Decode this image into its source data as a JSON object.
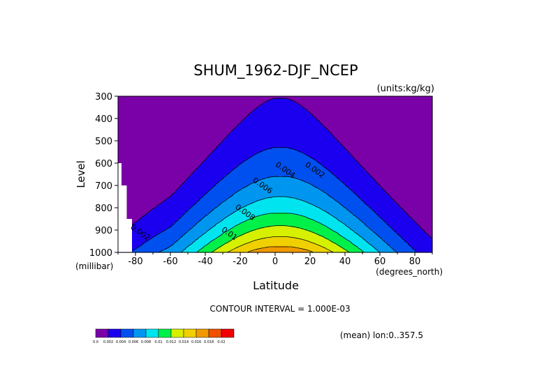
{
  "chart_data": {
    "type": "heatmap",
    "title": "SHUM_1962-DJF_NCEP",
    "units_label": "(units:kg/kg)",
    "xlabel": "Latitude",
    "ylabel": "Level",
    "x_unit_label": "(degrees_north)",
    "y_unit_label": "(millibar)",
    "xlim": [
      -90,
      90
    ],
    "ylim": [
      1000,
      300
    ],
    "x_ticks": [
      {
        "value": -80,
        "label": "-80"
      },
      {
        "value": -60,
        "label": "-60"
      },
      {
        "value": -40,
        "label": "-40"
      },
      {
        "value": -20,
        "label": "-20"
      },
      {
        "value": 0,
        "label": "0"
      },
      {
        "value": 20,
        "label": "20"
      },
      {
        "value": 40,
        "label": "40"
      },
      {
        "value": 60,
        "label": "60"
      },
      {
        "value": 80,
        "label": "80"
      }
    ],
    "y_ticks": [
      {
        "value": 300,
        "label": "300"
      },
      {
        "value": 400,
        "label": "400"
      },
      {
        "value": 500,
        "label": "500"
      },
      {
        "value": 600,
        "label": "600"
      },
      {
        "value": 700,
        "label": "700"
      },
      {
        "value": 800,
        "label": "800"
      },
      {
        "value": 900,
        "label": "900"
      },
      {
        "value": 1000,
        "label": "1000"
      }
    ],
    "contour_interval_text": "CONTOUR INTERVAL = 1.000E-03",
    "mean_text": "(mean) lon:0..357.5",
    "colorbar": {
      "colors": [
        "#7a00a8",
        "#1b00f0",
        "#0050f0",
        "#0096f0",
        "#00e4f0",
        "#00f04a",
        "#d6f000",
        "#f0d000",
        "#f09a00",
        "#f05000",
        "#f00000"
      ],
      "labels": [
        "0.0",
        "0.002",
        "0.004",
        "0.006",
        "0.008",
        "0.01",
        "0.012",
        "0.014",
        "0.016",
        "0.018",
        "0.02"
      ]
    },
    "contour_labels": [
      {
        "text": "0.002",
        "lat": 22,
        "lev": 640
      },
      {
        "text": "0.004",
        "lat": 5,
        "lev": 640
      },
      {
        "text": "0.006",
        "lat": -8,
        "lev": 710
      },
      {
        "text": "0.008",
        "lat": -18,
        "lev": 830
      },
      {
        "text": "0.01",
        "lat": -27,
        "lev": 925
      },
      {
        "text": "0.002",
        "lat": -78,
        "lev": 920
      }
    ],
    "q_profile": {
      "levels": [
        1000,
        900,
        800,
        700,
        600,
        500,
        400,
        300
      ],
      "surface_max": 0.0175,
      "scale_height_mb": 320,
      "center_lat": 3,
      "lat_width": 34
    },
    "missing_data": {
      "cells": [
        {
          "lat_from": -90,
          "lat_to": -88,
          "lev_from": 1000,
          "lev_to": 600
        },
        {
          "lat_from": -88,
          "lat_to": -85,
          "lev_from": 1000,
          "lev_to": 700
        },
        {
          "lat_from": -85,
          "lat_to": -82,
          "lev_from": 1000,
          "lev_to": 850
        }
      ]
    }
  }
}
